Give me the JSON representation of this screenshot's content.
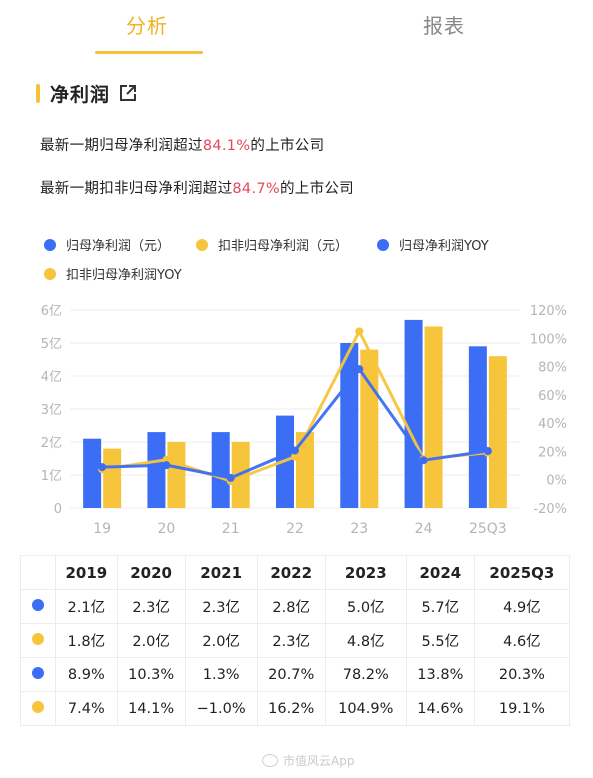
{
  "tabs": {
    "analysis": "分析",
    "report": "报表"
  },
  "section": {
    "title": "净利润"
  },
  "stats": {
    "line1_prefix": "最新一期归母净利润超过",
    "line1_value": "84.1%",
    "line1_suffix": "的上市公司",
    "line2_prefix": "最新一期扣非归母净利润超过",
    "line2_value": "84.7%",
    "line2_suffix": "的上市公司"
  },
  "colors": {
    "blue": "#3b6ef5",
    "yellow": "#f7c53c",
    "highlight": "#e8475a",
    "accent": "#f5c33a"
  },
  "chart_data": {
    "type": "bar",
    "categories": [
      "19",
      "20",
      "21",
      "22",
      "23",
      "24",
      "25Q3"
    ],
    "y_left_ticks": [
      "0",
      "1亿",
      "2亿",
      "3亿",
      "4亿",
      "5亿",
      "6亿"
    ],
    "y_left_range": [
      0,
      6
    ],
    "y_right_ticks": [
      "-20%",
      "0%",
      "20%",
      "40%",
      "60%",
      "80%",
      "100%",
      "120%"
    ],
    "y_right_range": [
      -20,
      120
    ],
    "series": [
      {
        "name": "归母净利润（元）",
        "type": "bar",
        "axis": "left",
        "color": "#3b6ef5",
        "values": [
          2.1,
          2.3,
          2.3,
          2.8,
          5.0,
          5.7,
          4.9
        ]
      },
      {
        "name": "扣非归母净利润（元）",
        "type": "bar",
        "axis": "left",
        "color": "#f7c53c",
        "values": [
          1.8,
          2.0,
          2.0,
          2.3,
          4.8,
          5.5,
          4.6
        ]
      },
      {
        "name": "归母净利润YOY",
        "type": "line",
        "axis": "right",
        "color": "#3b6ef5",
        "values": [
          8.9,
          10.3,
          1.3,
          20.7,
          78.2,
          13.8,
          20.3
        ]
      },
      {
        "name": "扣非归母净利润YOY",
        "type": "line",
        "axis": "right",
        "color": "#f7c53c",
        "values": [
          7.4,
          14.1,
          -1.0,
          16.2,
          104.9,
          14.6,
          19.1
        ]
      }
    ],
    "grid": true,
    "legend_position": "top"
  },
  "table": {
    "headers": [
      "2019",
      "2020",
      "2021",
      "2022",
      "2023",
      "2024",
      "2025Q3"
    ],
    "rows": [
      {
        "color": "blue",
        "cells": [
          "2.1亿",
          "2.3亿",
          "2.3亿",
          "2.8亿",
          "5.0亿",
          "5.7亿",
          "4.9亿"
        ]
      },
      {
        "color": "yellow",
        "cells": [
          "1.8亿",
          "2.0亿",
          "2.0亿",
          "2.3亿",
          "4.8亿",
          "5.5亿",
          "4.6亿"
        ]
      },
      {
        "color": "blue",
        "cells": [
          "8.9%",
          "10.3%",
          "1.3%",
          "20.7%",
          "78.2%",
          "13.8%",
          "20.3%"
        ]
      },
      {
        "color": "yellow",
        "cells": [
          "7.4%",
          "14.1%",
          "−1.0%",
          "16.2%",
          "104.9%",
          "14.6%",
          "19.1%"
        ]
      }
    ]
  },
  "watermark": "市值风云App"
}
